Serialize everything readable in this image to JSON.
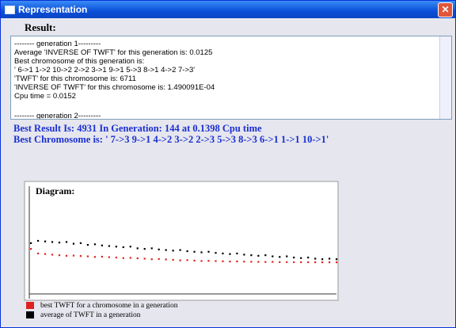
{
  "window": {
    "title": "Representation"
  },
  "result_label": "Result:",
  "result_lines": [
    "-------- generation 1---------",
    "Average 'INVERSE OF TWFT' for this generation is: 0.0125",
    "Best chromosome of this generation is:",
    "' 6->1  1->2  10->2  2->2  3->1  9->1  5->3  8->1  4->2  7->3'",
    "'TWFT' for this chromosome is: 6711",
    "'INVERSE OF TWFT' for this chromosome is: 1.490091E-04",
    "Cpu time = 0.0152",
    "-------- generation 2---------"
  ],
  "best_result": "Best Result Is: 4931  In Generation: 144 at 0.1398 Cpu time",
  "best_chromosome": "Best Chromosome is: ' 7->3  9->1  4->2  3->2  2->3  5->3  8->3  6->1  1->1  10->1'",
  "diagram": {
    "title": "Diagram:",
    "series": [
      {
        "name": "best TWFT  for a chromosome  in a generation",
        "color": "#e02020",
        "values": [
          6100,
          5700,
          5650,
          5600,
          5550,
          5500,
          5520,
          5480,
          5450,
          5400,
          5420,
          5380,
          5350,
          5300,
          5320,
          5280,
          5250,
          5200,
          5220,
          5180,
          5150,
          5100,
          5120,
          5080,
          5050,
          5060,
          5040,
          5020,
          5000,
          5010,
          4990,
          4980,
          4970,
          4960,
          4970,
          4950,
          4950,
          4940,
          4940,
          4935,
          4935,
          4931,
          4931,
          4931
        ]
      },
      {
        "name": "average of TWFT  in a generation",
        "color": "#000000",
        "values": [
          6600,
          6800,
          6750,
          6700,
          6650,
          6700,
          6550,
          6600,
          6450,
          6500,
          6400,
          6350,
          6300,
          6250,
          6300,
          6150,
          6100,
          6150,
          6050,
          6000,
          5950,
          6000,
          5900,
          5850,
          5800,
          5850,
          5750,
          5700,
          5650,
          5700,
          5600,
          5550,
          5500,
          5550,
          5450,
          5400,
          5450,
          5350,
          5300,
          5350,
          5250,
          5200,
          5250,
          5200
        ]
      }
    ]
  }
}
